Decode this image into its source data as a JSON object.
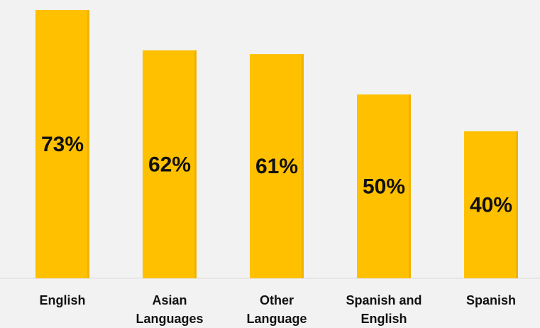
{
  "chart_data": {
    "type": "bar",
    "categories": [
      "English",
      "Asian Languages",
      "Other Language",
      "Spanish and English",
      "Spanish"
    ],
    "category_lines": [
      [
        "English"
      ],
      [
        "Asian",
        "Languages"
      ],
      [
        "Other",
        "Language"
      ],
      [
        "Spanish and",
        "English"
      ],
      [
        "Spanish"
      ]
    ],
    "values": [
      73,
      62,
      61,
      50,
      40
    ],
    "data_labels": [
      "73%",
      "62%",
      "61%",
      "50%",
      "40%"
    ],
    "title": "",
    "xlabel": "",
    "ylabel": "",
    "ylim": [
      0,
      73
    ],
    "grid": false,
    "legend": "none",
    "bar_color": "#ffc000"
  }
}
